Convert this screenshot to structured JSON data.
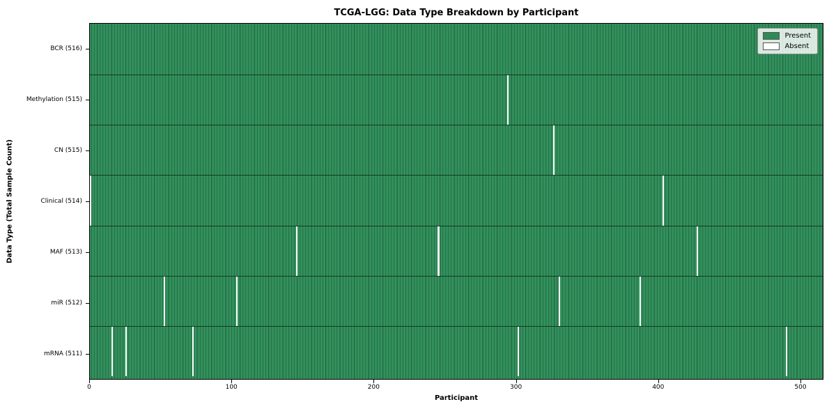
{
  "chart_data": {
    "type": "heatmap",
    "title": "TCGA-LGG: Data Type Breakdown by Participant",
    "xlabel": "Participant",
    "ylabel": "Data Type (Total Sample Count)",
    "n_participants": 516,
    "x_ticks": [
      0,
      100,
      200,
      300,
      400,
      500
    ],
    "x_axis_max": 516,
    "grid": false,
    "legend_position": "upper right",
    "colors": {
      "present": "#2e8b57",
      "present_edge": "#1f6140",
      "absent": "#ffffff"
    },
    "legend": [
      {
        "label": "Present",
        "color": "#2e8b57"
      },
      {
        "label": "Absent",
        "color": "#ffffff"
      }
    ],
    "rows": [
      {
        "label": "BCR (516)",
        "data_type": "BCR",
        "present_count": 516,
        "absent_participants": []
      },
      {
        "label": "Methylation (515)",
        "data_type": "Methylation",
        "present_count": 515,
        "absent_participants": [
          294
        ]
      },
      {
        "label": "CN (515)",
        "data_type": "CN",
        "present_count": 515,
        "absent_participants": [
          326
        ]
      },
      {
        "label": "Clinical (514)",
        "data_type": "Clinical",
        "present_count": 514,
        "absent_participants": [
          0,
          403
        ]
      },
      {
        "label": "MAF (513)",
        "data_type": "MAF",
        "present_count": 513,
        "absent_participants": [
          145,
          245,
          427
        ]
      },
      {
        "label": "miR (512)",
        "data_type": "miR",
        "present_count": 512,
        "absent_participants": [
          52,
          103,
          330,
          387
        ]
      },
      {
        "label": "mRNA (511)",
        "data_type": "mRNA",
        "present_count": 511,
        "absent_participants": [
          15,
          25,
          72,
          301,
          490
        ]
      }
    ]
  }
}
